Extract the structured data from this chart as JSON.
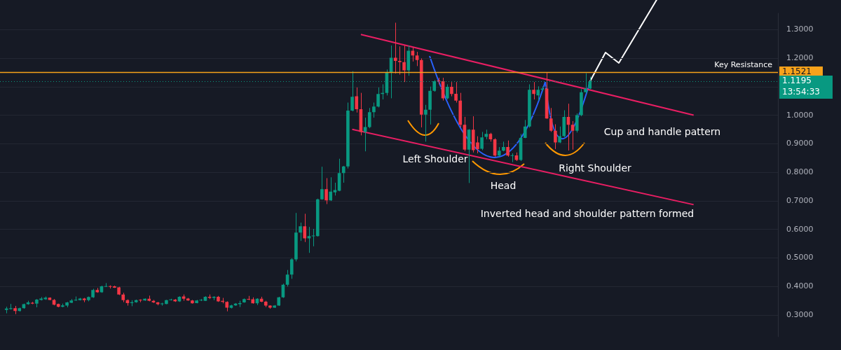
{
  "chart_data": {
    "type": "candlestick",
    "categories": [
      null,
      null,
      null,
      null,
      null,
      null,
      null,
      null,
      null,
      null,
      null,
      null,
      null,
      null,
      null,
      null,
      null,
      null,
      null,
      null,
      null,
      null,
      null,
      null,
      null,
      null,
      null,
      null,
      null,
      null,
      null,
      null,
      null,
      null,
      null,
      null,
      null,
      null,
      null,
      null,
      null,
      null,
      null,
      null,
      null,
      null,
      null,
      null,
      null,
      null,
      null,
      null,
      null,
      null,
      null,
      null,
      null,
      null,
      null,
      null,
      null,
      null,
      null,
      null,
      null,
      null,
      null,
      null,
      null,
      null,
      null,
      null,
      null,
      null,
      null,
      null,
      null,
      null,
      null,
      null,
      null,
      null,
      null,
      null,
      null,
      null,
      null,
      null,
      null,
      null,
      null,
      null,
      null,
      null,
      null,
      null,
      null,
      null,
      null,
      null,
      null,
      null,
      null,
      null,
      null,
      null,
      null,
      null,
      null,
      null,
      null,
      null,
      null,
      null,
      null,
      null,
      null,
      null,
      null,
      null,
      null,
      null,
      null,
      null,
      null,
      null,
      null,
      null,
      null,
      null,
      null,
      null,
      null,
      null,
      null,
      null,
      null,
      null,
      null,
      null,
      null,
      null,
      null,
      null,
      null,
      null,
      null,
      null,
      null,
      null,
      null,
      null,
      null,
      null,
      null,
      null,
      null,
      null,
      null,
      null,
      null,
      null,
      null,
      null,
      null,
      null,
      null,
      null,
      null,
      null,
      null,
      null,
      null,
      null,
      null,
      null,
      null,
      null,
      null,
      null
    ],
    "ohlc": [
      null,
      [
        0.318,
        0.329,
        0.306,
        0.323
      ],
      [
        0.321,
        0.339,
        0.319,
        0.324
      ],
      [
        0.324,
        0.332,
        0.303,
        0.314
      ],
      [
        0.314,
        0.326,
        0.312,
        0.324
      ],
      [
        0.324,
        0.34,
        0.322,
        0.338
      ],
      [
        0.338,
        0.35,
        0.336,
        0.344
      ],
      [
        0.343,
        0.346,
        0.338,
        0.34
      ],
      [
        0.34,
        0.356,
        0.327,
        0.354
      ],
      [
        0.353,
        0.363,
        0.351,
        0.358
      ],
      [
        0.355,
        0.365,
        0.353,
        0.361
      ],
      [
        0.361,
        0.362,
        0.352,
        0.353
      ],
      [
        0.353,
        0.356,
        0.334,
        0.336
      ],
      [
        0.339,
        0.34,
        0.327,
        0.329
      ],
      [
        0.329,
        0.34,
        0.327,
        0.334
      ],
      [
        0.333,
        0.346,
        0.327,
        0.344
      ],
      [
        0.343,
        0.356,
        0.342,
        0.351
      ],
      [
        0.351,
        0.365,
        0.35,
        0.353
      ],
      [
        0.352,
        0.36,
        0.351,
        0.358
      ],
      [
        0.358,
        0.36,
        0.345,
        0.352
      ],
      [
        0.352,
        0.365,
        0.348,
        0.363
      ],
      [
        0.362,
        0.392,
        0.36,
        0.388
      ],
      [
        0.388,
        0.395,
        0.378,
        0.38
      ],
      [
        0.38,
        0.403,
        0.378,
        0.401
      ],
      [
        0.399,
        0.412,
        0.399,
        0.401
      ],
      [
        0.401,
        0.404,
        0.393,
        0.399
      ],
      [
        0.401,
        0.403,
        0.395,
        0.396
      ],
      [
        0.397,
        0.399,
        0.37,
        0.372
      ],
      [
        0.372,
        0.378,
        0.345,
        0.352
      ],
      [
        0.352,
        0.355,
        0.333,
        0.342
      ],
      [
        0.342,
        0.352,
        0.331,
        0.345
      ],
      [
        0.345,
        0.354,
        0.343,
        0.352
      ],
      [
        0.353,
        0.355,
        0.345,
        0.351
      ],
      [
        0.351,
        0.358,
        0.35,
        0.357
      ],
      [
        0.357,
        0.368,
        0.348,
        0.35
      ],
      [
        0.35,
        0.353,
        0.342,
        0.344
      ],
      [
        0.344,
        0.346,
        0.334,
        0.338
      ],
      [
        0.338,
        0.343,
        0.333,
        0.339
      ],
      [
        0.339,
        0.353,
        0.338,
        0.352
      ],
      [
        0.352,
        0.357,
        0.351,
        0.354
      ],
      [
        0.354,
        0.356,
        0.346,
        0.348
      ],
      [
        0.348,
        0.366,
        0.346,
        0.364
      ],
      [
        0.365,
        0.372,
        0.35,
        0.357
      ],
      [
        0.358,
        0.36,
        0.35,
        0.351
      ],
      [
        0.351,
        0.353,
        0.34,
        0.341
      ],
      [
        0.342,
        0.353,
        0.341,
        0.351
      ],
      [
        0.351,
        0.356,
        0.349,
        0.352
      ],
      [
        0.35,
        0.366,
        0.349,
        0.364
      ],
      [
        0.364,
        0.372,
        0.356,
        0.36
      ],
      [
        0.36,
        0.366,
        0.352,
        0.364
      ],
      [
        0.364,
        0.367,
        0.346,
        0.348
      ],
      [
        0.35,
        0.36,
        0.341,
        0.346
      ],
      [
        0.346,
        0.348,
        0.313,
        0.326
      ],
      [
        0.325,
        0.336,
        0.323,
        0.334
      ],
      [
        0.334,
        0.342,
        0.332,
        0.34
      ],
      [
        0.338,
        0.35,
        0.328,
        0.342
      ],
      [
        0.344,
        0.358,
        0.343,
        0.356
      ],
      [
        0.355,
        0.367,
        0.352,
        0.354
      ],
      [
        0.355,
        0.362,
        0.34,
        0.341
      ],
      [
        0.341,
        0.359,
        0.335,
        0.357
      ],
      [
        0.357,
        0.364,
        0.345,
        0.347
      ],
      [
        0.347,
        0.35,
        0.328,
        0.333
      ],
      [
        0.333,
        0.334,
        0.322,
        0.326
      ],
      [
        0.326,
        0.335,
        0.325,
        0.333
      ],
      [
        0.333,
        0.364,
        0.332,
        0.362
      ],
      [
        0.362,
        0.41,
        0.36,
        0.406
      ],
      [
        0.406,
        0.458,
        0.4,
        0.442
      ],
      [
        0.442,
        0.499,
        0.427,
        0.495
      ],
      [
        0.495,
        0.658,
        0.488,
        0.589
      ],
      [
        0.589,
        0.624,
        0.56,
        0.611
      ],
      [
        0.611,
        0.655,
        0.556,
        0.569
      ],
      [
        0.569,
        0.609,
        0.518,
        0.577
      ],
      [
        0.576,
        0.602,
        0.541,
        0.578
      ],
      [
        0.577,
        0.708,
        0.575,
        0.706
      ],
      [
        0.706,
        0.82,
        0.704,
        0.741
      ],
      [
        0.741,
        0.78,
        0.689,
        0.702
      ],
      [
        0.702,
        0.783,
        0.7,
        0.733
      ],
      [
        0.73,
        0.764,
        0.719,
        0.738
      ],
      [
        0.736,
        0.848,
        0.734,
        0.798
      ],
      [
        0.798,
        0.823,
        0.764,
        0.821
      ],
      [
        0.821,
        1.045,
        0.814,
        1.017
      ],
      [
        1.017,
        1.155,
        1.014,
        1.065
      ],
      [
        1.067,
        1.098,
        1.01,
        1.022
      ],
      [
        1.022,
        1.079,
        0.93,
        0.942
      ],
      [
        0.942,
        0.992,
        0.874,
        0.959
      ],
      [
        0.959,
        1.026,
        0.955,
        1.011
      ],
      [
        1.011,
        1.045,
        0.992,
        1.031
      ],
      [
        1.031,
        1.098,
        1.028,
        1.075
      ],
      [
        1.075,
        1.109,
        1.056,
        1.079
      ],
      [
        1.079,
        1.161,
        1.07,
        1.151
      ],
      [
        1.151,
        1.245,
        1.06,
        1.202
      ],
      [
        1.202,
        1.325,
        1.147,
        1.191
      ],
      [
        1.191,
        1.242,
        1.143,
        1.187
      ],
      [
        1.187,
        1.245,
        1.117,
        1.158
      ],
      [
        1.158,
        1.245,
        1.139,
        1.227
      ],
      [
        1.227,
        1.238,
        1.189,
        1.21
      ],
      [
        1.21,
        1.223,
        1.173,
        1.194
      ],
      [
        1.194,
        1.2,
        0.958,
        1.003
      ],
      [
        1.003,
        1.037,
        0.908,
        1.02
      ],
      [
        1.02,
        1.101,
        0.968,
        1.086
      ],
      [
        1.086,
        1.124,
        1.083,
        1.12
      ],
      [
        1.122,
        1.132,
        1.109,
        1.12
      ],
      [
        1.12,
        1.132,
        1.052,
        1.06
      ],
      [
        1.06,
        1.109,
        1.056,
        1.1
      ],
      [
        1.1,
        1.117,
        1.067,
        1.075
      ],
      [
        1.076,
        1.117,
        1.045,
        1.052
      ],
      [
        1.052,
        1.079,
        0.958,
        0.967
      ],
      [
        0.967,
        0.995,
        0.874,
        0.88
      ],
      [
        0.88,
        0.952,
        0.763,
        0.95
      ],
      [
        0.95,
        0.997,
        0.87,
        0.878
      ],
      [
        0.905,
        0.927,
        0.867,
        0.882
      ],
      [
        0.883,
        0.942,
        0.878,
        0.923
      ],
      [
        0.925,
        0.95,
        0.916,
        0.935
      ],
      [
        0.935,
        0.939,
        0.908,
        0.916
      ],
      [
        0.916,
        0.92,
        0.855,
        0.859
      ],
      [
        0.859,
        0.889,
        0.855,
        0.876
      ],
      [
        0.876,
        0.908,
        0.874,
        0.889
      ],
      [
        0.889,
        0.912,
        0.855,
        0.859
      ],
      [
        0.858,
        0.867,
        0.836,
        0.86
      ],
      [
        0.86,
        0.87,
        0.84,
        0.844
      ],
      [
        0.844,
        0.935,
        0.84,
        0.921
      ],
      [
        0.921,
        0.984,
        0.92,
        0.961
      ],
      [
        0.961,
        1.109,
        0.957,
        1.09
      ],
      [
        1.09,
        1.117,
        1.056,
        1.075
      ],
      [
        1.07,
        1.102,
        1.052,
        1.09
      ],
      [
        1.09,
        1.102,
        1.086,
        1.094
      ],
      [
        1.094,
        1.151,
        0.988,
        0.989
      ],
      [
        0.989,
        1.026,
        0.942,
        0.946
      ],
      [
        0.946,
        0.969,
        0.882,
        0.905
      ],
      [
        0.905,
        0.961,
        0.903,
        0.927
      ],
      [
        0.927,
        1.018,
        0.924,
        0.995
      ],
      [
        0.995,
        1.041,
        0.877,
        0.967
      ],
      [
        0.967,
        0.98,
        0.88,
        0.946
      ],
      [
        0.946,
        1.007,
        0.94,
        1.001
      ],
      [
        1.001,
        1.092,
        0.997,
        1.081
      ],
      [
        1.081,
        1.148,
        1.077,
        1.094
      ],
      [
        1.094,
        1.136,
        1.092,
        1.1195
      ],
      null,
      null,
      null,
      null,
      null,
      null,
      null,
      null,
      null,
      null,
      null,
      null,
      null,
      null,
      null,
      null,
      null,
      null,
      null,
      null,
      null,
      null,
      null,
      null,
      null,
      null,
      null,
      null,
      null,
      null,
      null,
      null,
      null,
      null,
      null,
      null,
      null,
      null,
      null,
      null,
      null,
      null,
      null
    ],
    "colors": [
      null,
      "#089981",
      "#089981",
      "#f23645",
      "#089981",
      "#089981",
      "#089981",
      "#f23645",
      "#089981",
      "#089981",
      "#089981",
      "#f23645",
      "#f23645",
      "#f23645",
      "#089981",
      "#089981",
      "#089981",
      "#089981",
      "#089981",
      "#f23645",
      "#089981",
      "#089981",
      "#f23645",
      "#089981",
      "#089981",
      "#f23645",
      "#f23645",
      "#f23645",
      "#f23645",
      "#f23645",
      "#089981",
      "#089981",
      "#f23645",
      "#089981",
      "#f23645",
      "#f23645",
      "#f23645",
      "#089981",
      "#089981",
      "#089981",
      "#f23645",
      "#089981",
      "#f23645",
      "#f23645",
      "#f23645",
      "#089981",
      "#089981",
      "#089981",
      "#f23645",
      "#089981",
      "#f23645",
      "#f23645",
      "#f23645",
      "#089981",
      "#089981",
      "#089981",
      "#089981",
      "#f23645",
      "#f23645",
      "#089981",
      "#f23645",
      "#f23645",
      "#f23645",
      "#089981",
      "#089981",
      "#089981",
      "#089981",
      "#089981",
      "#089981",
      "#089981",
      "#f23645",
      "#089981",
      "#089981",
      "#089981",
      "#089981",
      "#f23645",
      "#089981",
      "#089981",
      "#089981",
      "#089981",
      "#089981",
      "#089981",
      "#f23645",
      "#f23645",
      "#089981",
      "#089981",
      "#089981",
      "#089981",
      "#089981",
      "#089981",
      "#089981",
      "#f23645",
      "#f23645",
      "#f23645",
      "#089981",
      "#f23645",
      "#f23645",
      "#f23645",
      "#089981",
      "#089981",
      "#089981",
      "#f23645",
      "#f23645",
      "#089981",
      "#f23645",
      "#f23645",
      "#f23645",
      "#f23645",
      "#089981",
      "#f23645",
      "#f23645",
      "#089981",
      "#089981",
      "#f23645",
      "#f23645",
      "#089981",
      "#089981",
      "#f23645",
      "#089981",
      "#f23645",
      "#089981",
      "#089981",
      "#089981",
      "#f23645",
      "#089981",
      "#089981",
      "#f23645",
      "#f23645",
      "#f23645",
      "#089981",
      "#089981",
      "#f23645",
      "#f23645",
      "#089981",
      "#089981",
      "#089981",
      "#089981",
      null,
      null,
      null,
      null,
      null,
      null,
      null,
      null,
      null,
      null,
      null,
      null,
      null,
      null,
      null,
      null,
      null,
      null,
      null,
      null,
      null,
      null,
      null,
      null,
      null,
      null,
      null,
      null,
      null,
      null,
      null,
      null,
      null,
      null,
      null,
      null,
      null,
      null,
      null,
      null,
      null,
      null,
      null
    ],
    "series": [
      {
        "type": "line",
        "color": "#e91e63",
        "values": [
          null,
          null,
          null,
          null,
          null,
          null,
          null,
          null,
          null,
          null,
          null,
          null,
          null,
          null,
          null,
          null,
          null,
          null,
          null,
          null,
          null,
          null,
          null,
          null,
          null,
          null,
          null,
          null,
          null,
          null,
          null,
          null,
          null,
          null,
          null,
          null,
          null,
          null,
          null,
          null,
          null,
          null,
          null,
          null,
          null,
          null,
          null,
          null,
          null,
          null,
          null,
          null,
          null,
          null,
          null,
          null,
          null,
          null,
          null,
          null,
          null,
          null,
          null,
          null,
          null,
          null,
          null,
          null,
          null,
          null,
          null,
          null,
          null,
          null,
          null,
          null,
          null,
          null,
          null,
          null,
          null,
          null,
          null,
          1.284,
          null,
          null,
          null,
          null,
          null,
          null,
          null,
          null,
          null,
          null,
          null,
          null,
          null,
          null,
          null,
          null,
          null,
          null,
          null,
          null,
          null,
          null,
          null,
          null,
          null,
          null,
          null,
          null,
          null,
          null,
          null,
          null,
          null,
          null,
          null,
          null,
          null,
          null,
          null,
          null,
          null,
          null,
          null,
          null,
          null,
          null,
          null,
          null,
          null,
          null,
          null,
          null,
          null,
          null,
          null,
          null,
          null,
          null,
          null,
          null,
          null,
          null,
          null,
          null,
          null,
          null,
          null,
          null,
          null,
          null,
          null,
          null,
          null,
          null,
          null,
          null,
          1.001,
          null,
          null,
          null,
          null,
          null,
          null,
          null,
          null,
          null,
          null,
          null,
          null,
          null,
          null,
          null,
          null,
          null,
          null,
          null
        ]
      },
      {
        "type": "line",
        "color": "#e91e63",
        "values": [
          null,
          null,
          null,
          null,
          null,
          null,
          null,
          null,
          null,
          null,
          null,
          null,
          null,
          null,
          null,
          null,
          null,
          null,
          null,
          null,
          null,
          null,
          null,
          null,
          null,
          null,
          null,
          null,
          null,
          null,
          null,
          null,
          null,
          null,
          null,
          null,
          null,
          null,
          null,
          null,
          null,
          null,
          null,
          null,
          null,
          null,
          null,
          null,
          null,
          null,
          null,
          null,
          null,
          null,
          null,
          null,
          null,
          null,
          null,
          null,
          null,
          null,
          null,
          null,
          null,
          null,
          null,
          null,
          null,
          null,
          null,
          null,
          null,
          null,
          null,
          null,
          null,
          null,
          null,
          null,
          null,
          0.951,
          null,
          null,
          null,
          null,
          null,
          null,
          null,
          null,
          null,
          null,
          null,
          null,
          null,
          null,
          null,
          null,
          null,
          null,
          null,
          null,
          null,
          null,
          null,
          null,
          null,
          null,
          null,
          null,
          null,
          null,
          null,
          null,
          null,
          null,
          null,
          null,
          null,
          null,
          null,
          null,
          null,
          null,
          null,
          null,
          null,
          null,
          null,
          null,
          null,
          null,
          null,
          null,
          null,
          null,
          null,
          null,
          null,
          null,
          null,
          null,
          null,
          null,
          null,
          null,
          null,
          null,
          null,
          null,
          null,
          null,
          null,
          null,
          null,
          null,
          null,
          null,
          null,
          null,
          0.687,
          null,
          null,
          null,
          null,
          null,
          null,
          null,
          null,
          null,
          null,
          null,
          null,
          null,
          null,
          null,
          null,
          null,
          null,
          null
        ]
      }
    ],
    "marker": "none",
    "line_style": "solid",
    "ylim": [
      0.223,
      1.359
    ],
    "yticks": [
      {
        "value": 0.3,
        "label": "0.3000"
      },
      {
        "value": 0.4,
        "label": "0.4000"
      },
      {
        "value": 0.5,
        "label": "0.5000"
      },
      {
        "value": 0.6,
        "label": "0.6000"
      },
      {
        "value": 0.7,
        "label": "0.7000"
      },
      {
        "value": 0.8,
        "label": "0.8000"
      },
      {
        "value": 0.9,
        "label": "0.9000"
      },
      {
        "value": 1.0,
        "label": "1.0000"
      },
      {
        "value": 1.1,
        "label": null
      },
      {
        "value": 1.2,
        "label": "1.2000"
      },
      {
        "value": 1.3,
        "label": "1.3000"
      }
    ],
    "tick_labels": "y",
    "grid": "y",
    "legend": false,
    "ref_lines": [
      {
        "axis": "y",
        "value": 1.1521,
        "label": "Key Resistance",
        "color": "#f7a21b",
        "line_style": "solid"
      },
      {
        "axis": "y",
        "value": 1.1195,
        "color": "#089981",
        "line_style": "dotted"
      }
    ],
    "annotations": [
      "Left Shoulder",
      "Head",
      "Right Shoulder",
      "Cup and handle pattern",
      "Inverted head and shoulder pattern formed",
      "1.1521",
      "1.1195",
      "13:54:33"
    ]
  }
}
